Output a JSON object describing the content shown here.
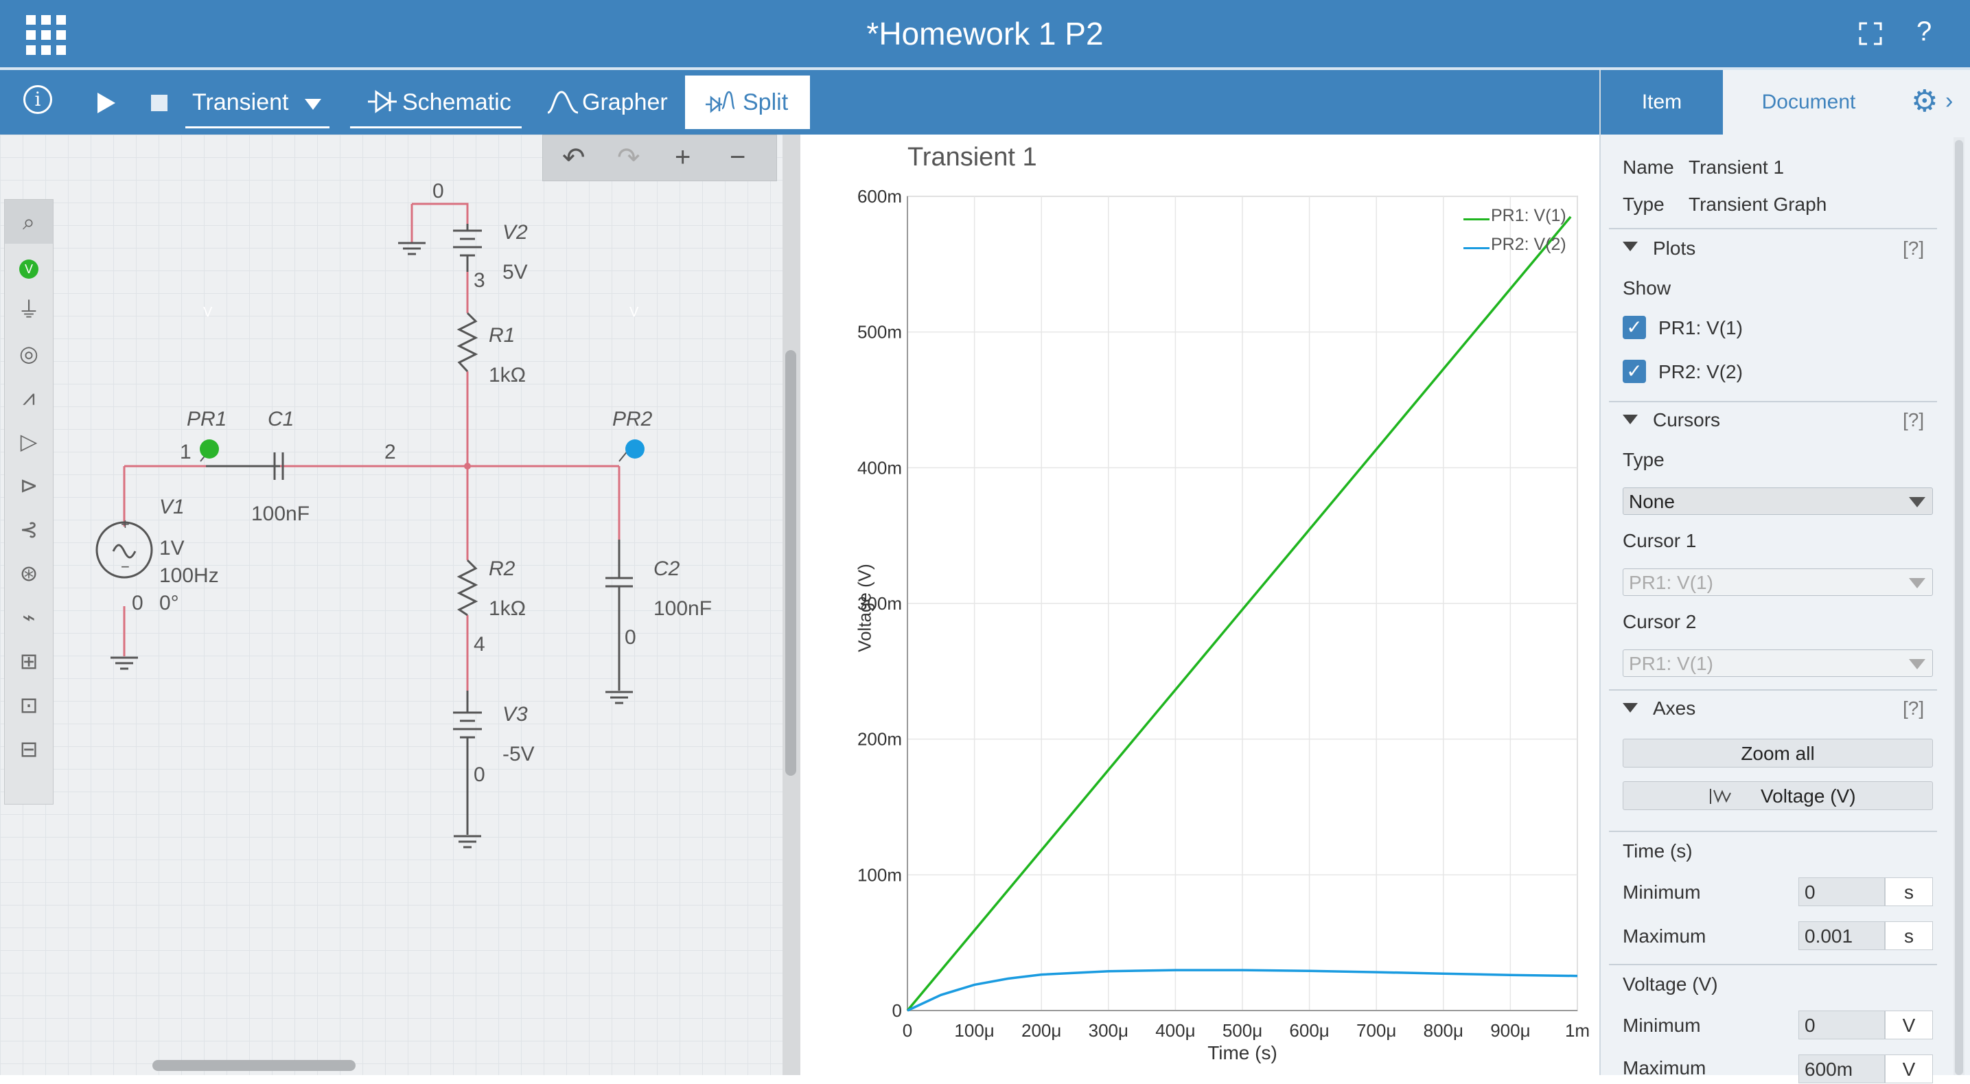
{
  "titlebar": {
    "title": "*Homework 1 P2",
    "help": "?"
  },
  "toolbar": {
    "info": "i",
    "analysis": "Transient",
    "tabs": {
      "schematic": "Schematic",
      "grapher": "Grapher",
      "split": "Split"
    },
    "active_tab": "Split",
    "accent": "#3f83bd"
  },
  "schematic": {
    "nodes": {
      "n0_top": "0",
      "n3": "3",
      "n1": "1",
      "n2": "2",
      "n4": "4",
      "n0_v1": "0",
      "n0_c2": "0",
      "n0_v3": "0"
    },
    "components": {
      "v2": {
        "name": "V2",
        "value": "5V"
      },
      "r1": {
        "name": "R1",
        "value": "1kΩ"
      },
      "pr1": {
        "name": "PR1",
        "badge": "V"
      },
      "c1": {
        "name": "C1",
        "value": "100nF"
      },
      "pr2": {
        "name": "PR2",
        "badge": "V"
      },
      "v1": {
        "name": "V1",
        "amp": "1V",
        "freq": "100Hz",
        "phase": "0°"
      },
      "r2": {
        "name": "R2",
        "value": "1kΩ"
      },
      "c2": {
        "name": "C2",
        "value": "100nF"
      },
      "v3": {
        "name": "V3",
        "value": "-5V"
      }
    },
    "wire_color": "#d9707f"
  },
  "graph": {
    "title": "Transient 1",
    "legend": [
      "PR1: V(1)",
      "PR2: V(2)"
    ]
  },
  "chart_data": {
    "type": "line",
    "title": "Transient 1",
    "xlabel": "Time (s)",
    "ylabel": "Voltage (V)",
    "xlim": [
      0,
      0.001
    ],
    "ylim": [
      0,
      0.6
    ],
    "x_tick_labels": [
      "0",
      "100μ",
      "200μ",
      "300μ",
      "400μ",
      "500μ",
      "600μ",
      "700μ",
      "800μ",
      "900μ",
      "1m"
    ],
    "y_tick_labels": [
      "0",
      "100m",
      "200m",
      "300m",
      "400m",
      "500m",
      "600m"
    ],
    "grid": true,
    "legend_position": "top-right",
    "series": [
      {
        "name": "PR1: V(1)",
        "color": "#1fb51f",
        "x": [
          0,
          0.0001,
          0.0002,
          0.0003,
          0.0004,
          0.0005,
          0.0006,
          0.0007,
          0.0008,
          0.0009,
          0.00099
        ],
        "y": [
          0,
          0.0591,
          0.1182,
          0.1773,
          0.2364,
          0.2955,
          0.3545,
          0.4136,
          0.4727,
          0.5318,
          0.585
        ]
      },
      {
        "name": "PR2: V(2)",
        "color": "#1a9be0",
        "x": [
          0,
          5e-05,
          0.0001,
          0.00015,
          0.0002,
          0.0003,
          0.0004,
          0.0005,
          0.0006,
          0.0007,
          0.0008,
          0.0009,
          0.001
        ],
        "y": [
          0,
          0.0115,
          0.019,
          0.0235,
          0.0265,
          0.029,
          0.0298,
          0.0298,
          0.0292,
          0.0283,
          0.0272,
          0.0262,
          0.0255
        ]
      }
    ]
  },
  "panel": {
    "tabs": {
      "item": "Item",
      "document": "Document"
    },
    "name_label": "Name",
    "name_value": "Transient 1",
    "type_label": "Type",
    "type_value": "Transient Graph",
    "plots": {
      "title": "Plots",
      "help": "[?]",
      "show": "Show",
      "items": [
        "PR1: V(1)",
        "PR2: V(2)"
      ]
    },
    "cursors": {
      "title": "Cursors",
      "help": "[?]",
      "type_label": "Type",
      "type_value": "None",
      "cursor1_label": "Cursor 1",
      "cursor1_value": "PR1: V(1)",
      "cursor2_label": "Cursor 2",
      "cursor2_value": "PR1: V(1)"
    },
    "axes": {
      "title": "Axes",
      "help": "[?]",
      "zoom_all": "Zoom all",
      "axis_btn": "Voltage (V)"
    },
    "time": {
      "title": "Time (s)",
      "min_label": "Minimum",
      "min_value": "0",
      "min_unit": "s",
      "max_label": "Maximum",
      "max_value": "0.001",
      "max_unit": "s"
    },
    "voltage": {
      "title": "Voltage (V)",
      "min_label": "Minimum",
      "min_value": "0",
      "min_unit": "V",
      "max_label": "Maximum",
      "max_value": "600m",
      "max_unit": "V"
    }
  }
}
